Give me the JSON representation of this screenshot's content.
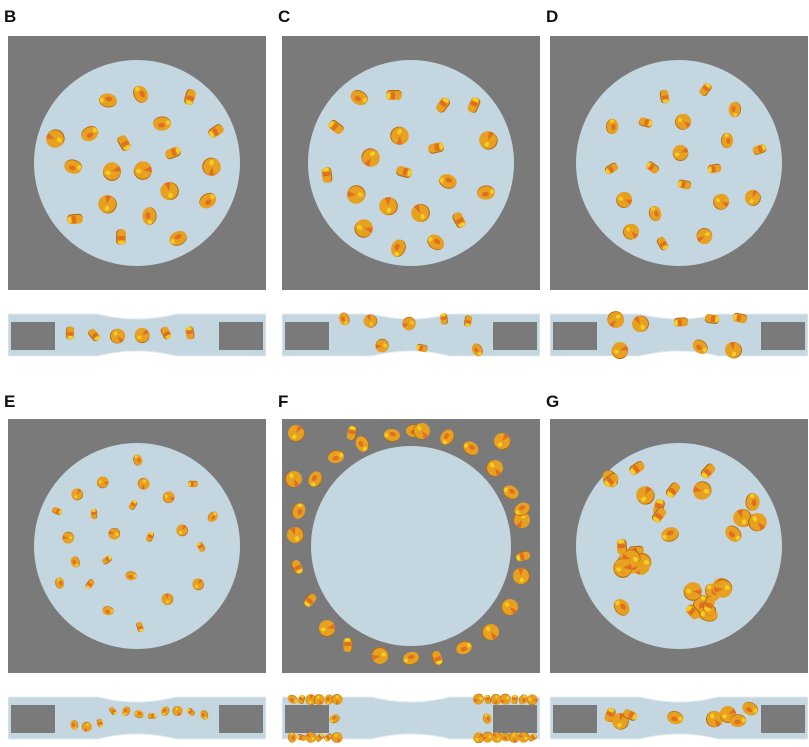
{
  "panels": [
    {
      "label": "B",
      "kind": "dispersed"
    },
    {
      "label": "C",
      "kind": "dispersed-flipped"
    },
    {
      "label": "D",
      "kind": "dispersed-tilted"
    },
    {
      "label": "E",
      "kind": "fragmented"
    },
    {
      "label": "F",
      "kind": "wall-adhered"
    },
    {
      "label": "G",
      "kind": "aggregated"
    }
  ],
  "colors": {
    "background": "#ffffff",
    "frame": "#7a7a7a",
    "domain": "#c4d6df",
    "particle_body": "#e8a020",
    "particle_highlight": "#f5d020",
    "particle_cut": "#e07020",
    "particle_shadow": "#b26a10",
    "label": "#111111"
  }
}
